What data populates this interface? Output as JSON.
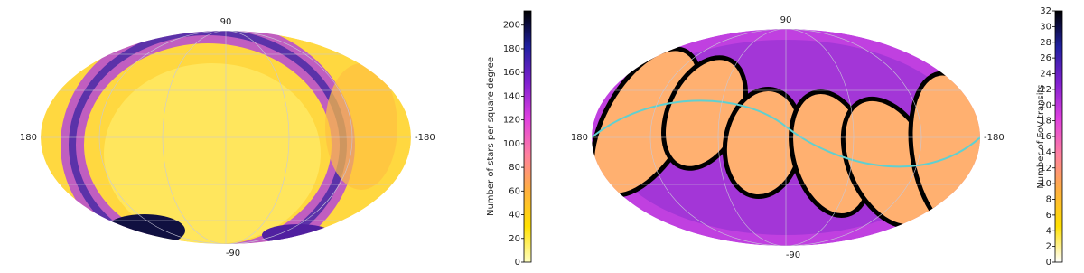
{
  "chart_data": [
    {
      "type": "skymap",
      "top_label": "90",
      "bottom_label": "-90",
      "left_label": "180",
      "right_label": "-180",
      "colorbar_label": "Number of stars per square degree",
      "clim": [
        0,
        212
      ],
      "cticks": [
        0,
        20,
        40,
        60,
        80,
        100,
        120,
        140,
        160,
        180,
        200
      ],
      "colorscale": [
        "#ffffc0",
        "#ffe000",
        "#ffb040",
        "#ff80a0",
        "#e040e0",
        "#8020d0",
        "#2020a0",
        "#000000"
      ]
    },
    {
      "type": "skymap",
      "top_label": "90",
      "bottom_label": "-90",
      "left_label": "180",
      "right_label": "-180",
      "colorbar_label": "Number of FoV transits",
      "clim": [
        0,
        32
      ],
      "cticks": [
        0,
        2,
        4,
        6,
        8,
        10,
        12,
        14,
        16,
        18,
        20,
        22,
        24,
        26,
        28,
        30,
        32
      ],
      "colorscale": [
        "#ffffff",
        "#ffe000",
        "#ffb040",
        "#ff80a0",
        "#e040e0",
        "#8020d0",
        "#2020a0",
        "#000000"
      ]
    }
  ]
}
